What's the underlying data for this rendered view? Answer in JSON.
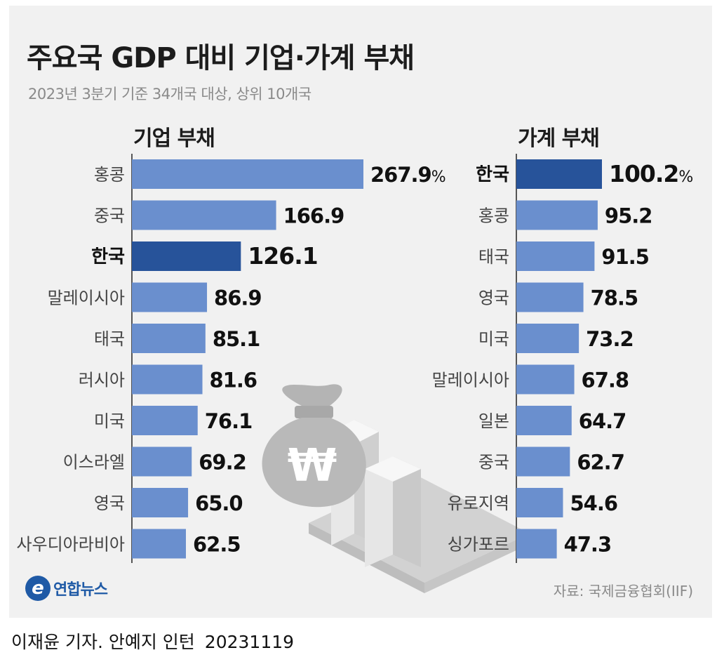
{
  "header": {
    "title": "주요국 GDP 대비 기업·가계 부채",
    "subtitle": "2023년 3분기 기준 34개국 대상, 상위 10개국"
  },
  "chart_data": [
    {
      "type": "bar",
      "orientation": "horizontal",
      "title": "기업 부채",
      "unit_suffix": "%",
      "categories": [
        "홍콩",
        "중국",
        "한국",
        "말레이시아",
        "태국",
        "러시아",
        "미국",
        "이스라엘",
        "영국",
        "사우디아라비아"
      ],
      "values": [
        267.9,
        166.9,
        126.1,
        86.9,
        85.1,
        81.6,
        76.1,
        69.2,
        65.0,
        62.5
      ],
      "value_labels": [
        "267.9",
        "166.9",
        "126.1",
        "86.9",
        "85.1",
        "81.6",
        "76.1",
        "69.2",
        "65.0",
        "62.5"
      ],
      "highlight": "한국"
    },
    {
      "type": "bar",
      "orientation": "horizontal",
      "title": "가계 부채",
      "unit_suffix": "%",
      "categories": [
        "한국",
        "홍콩",
        "태국",
        "영국",
        "미국",
        "말레이시아",
        "일본",
        "중국",
        "유로지역",
        "싱가포르"
      ],
      "values": [
        100.2,
        95.2,
        91.5,
        78.5,
        73.2,
        67.8,
        64.7,
        62.7,
        54.6,
        47.3
      ],
      "value_labels": [
        "100.2",
        "95.2",
        "91.5",
        "78.5",
        "73.2",
        "67.8",
        "64.7",
        "62.7",
        "54.6",
        "47.3"
      ],
      "highlight": "한국"
    }
  ],
  "colors": {
    "bar": "#6a8fce",
    "highlight": "#27539a",
    "background": "#f1f1f1"
  },
  "footer": {
    "logo_mark": "e",
    "logo_text": "연합뉴스",
    "source": "자료: 국제금융협회(IIF)",
    "byline": "이재윤 기자. 안예지 인턴",
    "date": "20231119"
  }
}
